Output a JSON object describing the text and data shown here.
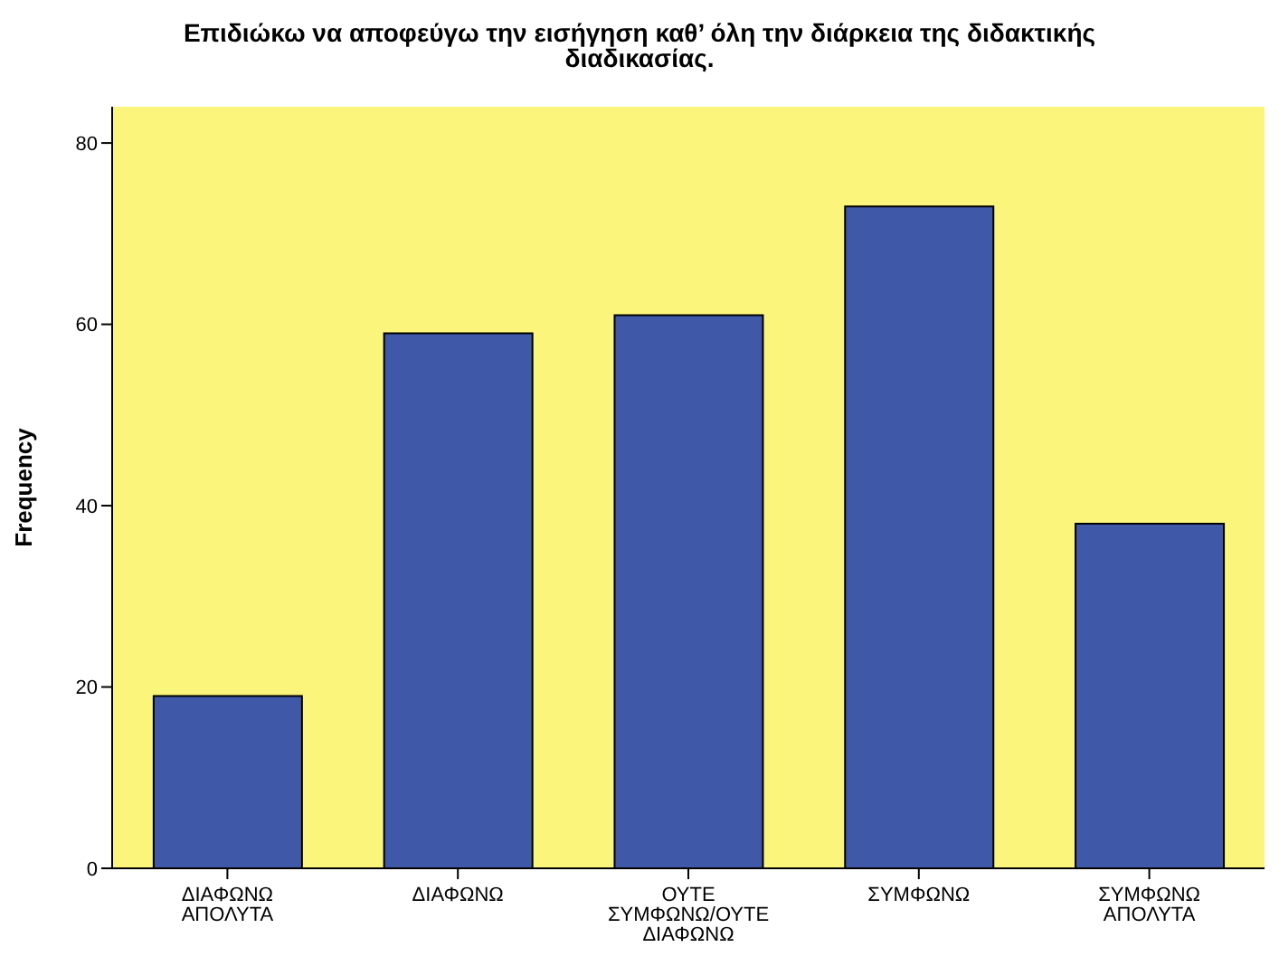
{
  "chart_data": {
    "type": "bar",
    "title": "Επιδιώκω να αποφεύγω την εισήγηση καθ’ όλη την διάρκεια της διδακτικής διαδικασίας.",
    "ylabel": "Frequency",
    "categories": [
      "ΔΙΑΦΩΝΩ ΑΠΟΛΥΤΑ",
      "ΔΙΑΦΩΝΩ",
      "ΟΥΤΕ ΣΥΜΦΩΝΩ/ΟΥΤΕ ΔΙΑΦΩΝΩ",
      "ΣΥΜΦΩΝΩ",
      "ΣΥΜΦΩΝΩ ΑΠΟΛΥΤΑ"
    ],
    "values": [
      19,
      59,
      61,
      73,
      38
    ],
    "color": "#3f58a8",
    "ylim": [
      0,
      84
    ],
    "yticks": [
      0,
      20,
      40,
      60,
      80
    ],
    "grid": false,
    "legend": false
  }
}
